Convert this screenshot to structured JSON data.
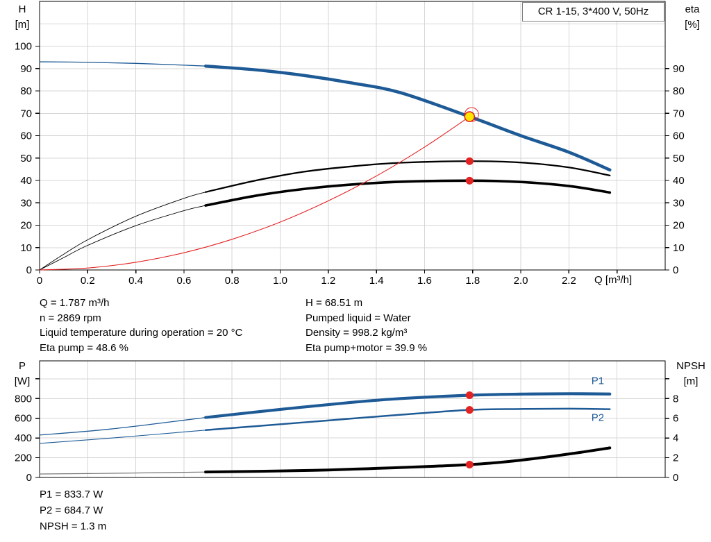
{
  "title_box": {
    "label": "CR 1-15, 3*400 V, 50Hz"
  },
  "colors": {
    "blue": "#1d5a96",
    "red": "#e32222",
    "yellow": "#ffe600",
    "black": "#000000",
    "grid": "#d6d6d6"
  },
  "axis_labels": {
    "h": [
      "H",
      "[m]"
    ],
    "eta": [
      "eta",
      "[%]"
    ],
    "p": [
      "P",
      "[W]"
    ],
    "npsh": [
      "NPSH",
      "[m]"
    ],
    "q": "Q [m³/h]"
  },
  "top_annotations": {
    "col1": [
      "Q = 1.787 m³/h",
      "n = 2869 rpm",
      "Liquid temperature during operation = 20 °C",
      "Eta pump = 48.6 %"
    ],
    "col2": [
      "H = 68.51 m",
      "Pumped liquid = Water",
      "Density = 998.2 kg/m³",
      "Eta pump+motor = 39.9 %"
    ]
  },
  "bottom_annotations": [
    "P1 = 833.7 W",
    "P2 = 684.7 W",
    "NPSH = 1.3 m"
  ],
  "operating_point": {
    "Q_m3h": 1.787,
    "H_m": 68.51,
    "n_rpm": 2869,
    "eta_pump_pct": 48.6,
    "eta_pump_motor_pct": 39.9,
    "P1_W": 833.7,
    "P2_W": 684.7,
    "NPSH_m": 1.3,
    "density_kgm3": 998.2,
    "liquid": "Water",
    "temperature_C": 20
  },
  "chart_data": [
    {
      "type": "line",
      "name": "hq-eta-chart",
      "title": "CR 1-15, 3*400 V, 50Hz",
      "x_axis": {
        "label": "Q [m³/h]",
        "min": 0,
        "max": 2.6,
        "tick_values": [
          0,
          0.2,
          0.4,
          0.6,
          0.8,
          1.0,
          1.2,
          1.4,
          1.6,
          1.8,
          2.0,
          2.2,
          2.4
        ],
        "tick_labels": [
          "0",
          "0.2",
          "0.4",
          "0.6",
          "0.8",
          "1.0",
          "1.2",
          "1.4",
          "1.6",
          "1.8",
          "2.0",
          "2.2",
          ""
        ],
        "grid": [
          0.2,
          0.4,
          0.6,
          0.8,
          1.0,
          1.2,
          1.4,
          1.6,
          1.8,
          2.0,
          2.2,
          2.4
        ]
      },
      "y_left": {
        "label": "H [m]",
        "min": 0,
        "max": 120,
        "tick_values": [
          0,
          10,
          20,
          30,
          40,
          50,
          60,
          70,
          80,
          90,
          100
        ],
        "tick_labels": [
          "0",
          "10",
          "20",
          "30",
          "40",
          "50",
          "60",
          "70",
          "80",
          "90",
          "100"
        ],
        "grid": [
          10,
          20,
          30,
          40,
          50,
          60,
          70,
          80,
          90,
          100,
          110
        ]
      },
      "y_right": {
        "label": "eta [%]",
        "min": 0,
        "max": 120,
        "tick_values": [
          0,
          10,
          20,
          30,
          40,
          50,
          60,
          70,
          80,
          90
        ],
        "tick_labels": [
          "0",
          "10",
          "20",
          "30",
          "40",
          "50",
          "60",
          "70",
          "80",
          "90"
        ],
        "grid": []
      },
      "series": [
        {
          "name": "h-curve",
          "axis": "left",
          "color": "#1d5a96",
          "segments": [
            {
              "width": 1.3,
              "points": [
                [
                  0,
                  93
                ],
                [
                  0.2,
                  92.8
                ],
                [
                  0.4,
                  92.3
                ],
                [
                  0.6,
                  91.5
                ],
                [
                  0.69,
                  91.1
                ]
              ]
            },
            {
              "width": 4.5,
              "points": [
                [
                  0.69,
                  91.1
                ],
                [
                  0.9,
                  89.4
                ],
                [
                  1.1,
                  86.9
                ],
                [
                  1.3,
                  83.5
                ],
                [
                  1.5,
                  79.2
                ],
                [
                  1.787,
                  68.51
                ],
                [
                  2.0,
                  60
                ],
                [
                  2.2,
                  52.6
                ],
                [
                  2.37,
                  44.7
                ]
              ]
            }
          ]
        },
        {
          "name": "eta-pump-curve",
          "axis": "right",
          "color": "#000000",
          "segments": [
            {
              "width": 0.9,
              "points": [
                [
                  0,
                  0
                ],
                [
                  0.1,
                  7
                ],
                [
                  0.2,
                  13.5
                ],
                [
                  0.4,
                  24
                ],
                [
                  0.6,
                  32
                ],
                [
                  0.69,
                  34.8
                ]
              ]
            },
            {
              "width": 2.3,
              "points": [
                [
                  0.69,
                  34.8
                ],
                [
                  0.9,
                  40
                ],
                [
                  1.1,
                  43.9
                ],
                [
                  1.3,
                  46.3
                ],
                [
                  1.5,
                  47.9
                ],
                [
                  1.787,
                  48.6
                ],
                [
                  2.0,
                  48
                ],
                [
                  2.2,
                  45.8
                ],
                [
                  2.37,
                  42.2
                ]
              ]
            }
          ]
        },
        {
          "name": "eta-pump-motor-curve",
          "axis": "right",
          "color": "#000000",
          "segments": [
            {
              "width": 0.9,
              "points": [
                [
                  0,
                  0
                ],
                [
                  0.1,
                  5.5
                ],
                [
                  0.2,
                  11
                ],
                [
                  0.4,
                  19.8
                ],
                [
                  0.6,
                  26.5
                ],
                [
                  0.69,
                  28.8
                ]
              ]
            },
            {
              "width": 3.6,
              "points": [
                [
                  0.69,
                  28.8
                ],
                [
                  0.9,
                  33.2
                ],
                [
                  1.1,
                  36.2
                ],
                [
                  1.3,
                  38.2
                ],
                [
                  1.5,
                  39.4
                ],
                [
                  1.787,
                  39.9
                ],
                [
                  2.0,
                  39.3
                ],
                [
                  2.2,
                  37.5
                ],
                [
                  2.37,
                  34.6
                ]
              ]
            }
          ]
        },
        {
          "name": "system-curve",
          "axis": "left",
          "color": "#e32222",
          "segments": [
            {
              "width": 1.1,
              "points": [
                [
                  0,
                  0
                ],
                [
                  0.2,
                  0.86
                ],
                [
                  0.4,
                  3.43
                ],
                [
                  0.6,
                  7.7
                ],
                [
                  0.8,
                  13.7
                ],
                [
                  1.0,
                  21.4
                ],
                [
                  1.2,
                  30.9
                ],
                [
                  1.4,
                  42
                ],
                [
                  1.6,
                  54.9
                ],
                [
                  1.787,
                  68.51
                ]
              ]
            }
          ]
        }
      ],
      "markers": [
        {
          "name": "duty-point-marker",
          "x": 1.787,
          "y": 68.51,
          "axis": "left",
          "fill": "#ffe600",
          "stroke": "#e32222",
          "r": 7,
          "ring": true
        },
        {
          "name": "eta-pump-marker",
          "x": 1.787,
          "y": 48.6,
          "axis": "right",
          "fill": "#e32222",
          "r": 5.5
        },
        {
          "name": "eta-pump-motor-marker",
          "x": 1.787,
          "y": 39.9,
          "axis": "right",
          "fill": "#e32222",
          "r": 5.5
        }
      ],
      "curve_labels": []
    },
    {
      "type": "line",
      "name": "power-npsh-chart",
      "title": "",
      "x_axis": {
        "label": "",
        "min": 0,
        "max": 2.6,
        "tick_values": [],
        "tick_labels": [],
        "grid": [
          0.2,
          0.4,
          0.6,
          0.8,
          1.0,
          1.2,
          1.4,
          1.6,
          1.8,
          2.0,
          2.2,
          2.4
        ]
      },
      "y_left": {
        "label": "P [W]",
        "min": 0,
        "max": 1182,
        "tick_values": [
          0,
          200,
          400,
          600,
          800,
          1000
        ],
        "tick_labels": [
          "0",
          "200",
          "400",
          "600",
          "800",
          ""
        ],
        "grid": [
          200,
          400,
          600,
          800,
          1000
        ]
      },
      "y_right": {
        "label": "NPSH [m]",
        "min": 0,
        "max": 11.82,
        "tick_values": [
          0,
          2,
          4,
          6,
          8,
          10
        ],
        "tick_labels": [
          "0",
          "2",
          "4",
          "6",
          "8",
          ""
        ],
        "grid": []
      },
      "series": [
        {
          "name": "p1-curve",
          "axis": "left",
          "color": "#1d5a96",
          "segments": [
            {
              "width": 1.3,
              "points": [
                [
                  0,
                  430
                ],
                [
                  0.3,
                  492
                ],
                [
                  0.69,
                  608
                ]
              ]
            },
            {
              "width": 4.2,
              "points": [
                [
                  0.69,
                  608
                ],
                [
                  1.0,
                  690
                ],
                [
                  1.3,
                  762
                ],
                [
                  1.5,
                  800
                ],
                [
                  1.787,
                  833.7
                ],
                [
                  2.0,
                  845
                ],
                [
                  2.2,
                  849
                ],
                [
                  2.37,
                  846
                ]
              ]
            }
          ]
        },
        {
          "name": "p2-curve",
          "axis": "left",
          "color": "#1d5a96",
          "segments": [
            {
              "width": 1.1,
              "points": [
                [
                  0,
                  345
                ],
                [
                  0.3,
                  400
                ],
                [
                  0.69,
                  480
                ]
              ]
            },
            {
              "width": 2.5,
              "points": [
                [
                  0.69,
                  480
                ],
                [
                  0.9,
                  520
                ],
                [
                  1.2,
                  578
                ],
                [
                  1.5,
                  636
                ],
                [
                  1.787,
                  684.7
                ],
                [
                  2.0,
                  694
                ],
                [
                  2.2,
                  697
                ],
                [
                  2.37,
                  692
                ]
              ]
            }
          ]
        },
        {
          "name": "npsh-curve",
          "axis": "right",
          "color": "#000000",
          "segments": [
            {
              "width": 1.2,
              "color": "#777777",
              "points": [
                [
                  0,
                  0.35
                ],
                [
                  0.3,
                  0.42
                ],
                [
                  0.69,
                  0.55
                ]
              ]
            },
            {
              "width": 4,
              "points": [
                [
                  0.69,
                  0.55
                ],
                [
                  1.0,
                  0.66
                ],
                [
                  1.2,
                  0.76
                ],
                [
                  1.4,
                  0.92
                ],
                [
                  1.6,
                  1.1
                ],
                [
                  1.787,
                  1.3
                ],
                [
                  1.95,
                  1.62
                ],
                [
                  2.1,
                  2.05
                ],
                [
                  2.25,
                  2.55
                ],
                [
                  2.37,
                  3.0
                ]
              ]
            }
          ]
        }
      ],
      "markers": [
        {
          "name": "p1-marker",
          "x": 1.787,
          "y": 833.7,
          "axis": "left",
          "fill": "#e32222",
          "r": 5.5
        },
        {
          "name": "p2-marker",
          "x": 1.787,
          "y": 684.7,
          "axis": "left",
          "fill": "#e32222",
          "r": 5.5
        },
        {
          "name": "npsh-marker",
          "x": 1.787,
          "y": 1.3,
          "axis": "right",
          "fill": "#e32222",
          "r": 5.5
        }
      ],
      "curve_labels": [
        {
          "text": "P1",
          "x": 2.32,
          "y": 945,
          "axis": "left",
          "color": "#1d5a96"
        },
        {
          "text": "P2",
          "x": 2.32,
          "y": 572,
          "axis": "left",
          "color": "#1d5a96"
        }
      ]
    }
  ]
}
